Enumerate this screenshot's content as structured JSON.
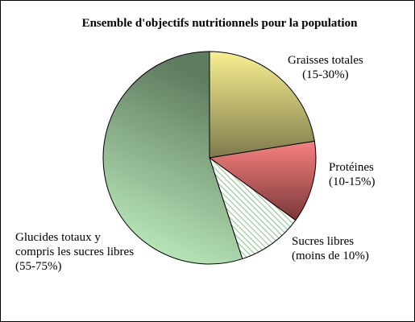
{
  "chart_data": {
    "type": "pie",
    "title": "Ensemble d'objectifs nutritionnels pour la population",
    "slices": [
      {
        "label_lines": [
          "Graisses totales",
          "(15-30%)"
        ],
        "value": 22.5,
        "color": "#c8c070"
      },
      {
        "label_lines": [
          "Protéines",
          "(10-15%)"
        ],
        "value": 12.5,
        "color": "#d06666"
      },
      {
        "label_lines": [
          "Sucres libres",
          "(moins de 10%)"
        ],
        "value": 10,
        "color": "#c8f0c0",
        "pattern": "diagonal-hatch"
      },
      {
        "label_lines": [
          "Glucides totaux y",
          "compris les sucres libres",
          "(55-75%)"
        ],
        "value": 55,
        "color": "#8fbf8c"
      }
    ]
  }
}
